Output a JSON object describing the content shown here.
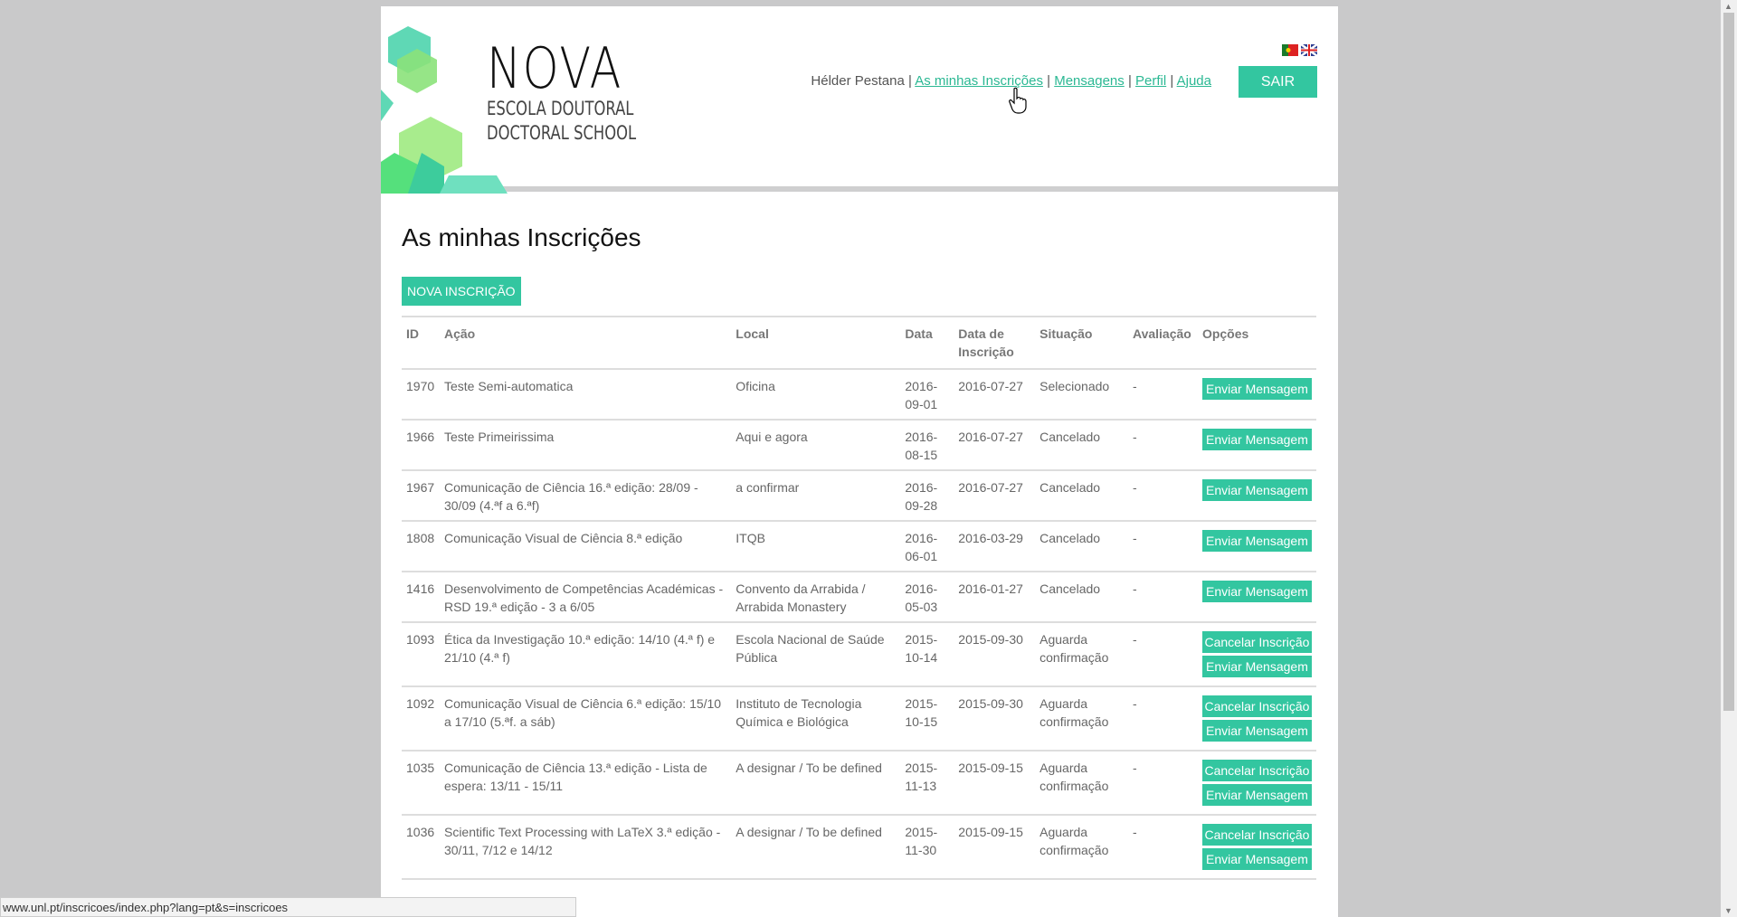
{
  "header": {
    "logo_title": "NOVA",
    "logo_sub1": "ESCOLA DOUTORAL",
    "logo_sub2": "DOCTORAL SCHOOL",
    "user": "Hélder Pestana",
    "nav": [
      "As minhas Inscrições",
      "Mensagens",
      "Perfil",
      "Ajuda"
    ],
    "separator": "|",
    "logout": "SAIR",
    "flags": [
      "pt-flag-icon",
      "uk-flag-icon"
    ]
  },
  "main": {
    "title": "As minhas Inscrições",
    "new_button": "NOVA INSCRIÇÃO",
    "columns": [
      "ID",
      "Ação",
      "Local",
      "Data",
      "Data de Inscrição",
      "Situação",
      "Avaliação",
      "Opções"
    ],
    "rows": [
      {
        "id": "1970",
        "acao": "Teste Semi-automatica",
        "local": "Oficina",
        "data": "2016-09-01",
        "inscricao": "2016-07-27",
        "situacao": "Selecionado",
        "avaliacao": "-",
        "buttons": [
          "Enviar Mensagem"
        ]
      },
      {
        "id": "1966",
        "acao": "Teste Primeirissima",
        "local": "Aqui e agora",
        "data": "2016-08-15",
        "inscricao": "2016-07-27",
        "situacao": "Cancelado",
        "avaliacao": "-",
        "buttons": [
          "Enviar Mensagem"
        ]
      },
      {
        "id": "1967",
        "acao": "Comunicação de Ciência 16.ª edição: 28/09 - 30/09 (4.ªf a 6.ªf)",
        "local": "a confirmar",
        "data": "2016-09-28",
        "inscricao": "2016-07-27",
        "situacao": "Cancelado",
        "avaliacao": "-",
        "buttons": [
          "Enviar Mensagem"
        ]
      },
      {
        "id": "1808",
        "acao": "Comunicação Visual de Ciência 8.ª edição",
        "local": "ITQB",
        "data": "2016-06-01",
        "inscricao": "2016-03-29",
        "situacao": "Cancelado",
        "avaliacao": "-",
        "buttons": [
          "Enviar Mensagem"
        ]
      },
      {
        "id": "1416",
        "acao": "Desenvolvimento de Competências Académicas - RSD 19.ª edição - 3 a 6/05",
        "local": "Convento da Arrabida / Arrabida Monastery",
        "data": "2016-05-03",
        "inscricao": "2016-01-27",
        "situacao": "Cancelado",
        "avaliacao": "-",
        "buttons": [
          "Enviar Mensagem"
        ]
      },
      {
        "id": "1093",
        "acao": "Ética da Investigação 10.ª edição: 14/10 (4.ª f) e 21/10 (4.ª f)",
        "local": "Escola Nacional de Saúde Pública",
        "data": "2015-10-14",
        "inscricao": "2015-09-30",
        "situacao": "Aguarda confirmação",
        "avaliacao": "-",
        "buttons": [
          "Cancelar Inscrição",
          "Enviar Mensagem"
        ]
      },
      {
        "id": "1092",
        "acao": "Comunicação Visual de Ciência 6.ª edição: 15/10 a 17/10 (5.ªf. a sáb)",
        "local": "Instituto de Tecnologia Química e Biológica",
        "data": "2015-10-15",
        "inscricao": "2015-09-30",
        "situacao": "Aguarda confirmação",
        "avaliacao": "-",
        "buttons": [
          "Cancelar Inscrição",
          "Enviar Mensagem"
        ]
      },
      {
        "id": "1035",
        "acao": "Comunicação de Ciência 13.ª edição - Lista de espera: 13/11 - 15/11",
        "local": "A designar / To be defined",
        "data": "2015-11-13",
        "inscricao": "2015-09-15",
        "situacao": "Aguarda confirmação",
        "avaliacao": "-",
        "buttons": [
          "Cancelar Inscrição",
          "Enviar Mensagem"
        ]
      },
      {
        "id": "1036",
        "acao": "Scientific Text Processing with LaTeX 3.ª edição - 30/11, 7/12 e 14/12",
        "local": "A designar / To be defined",
        "data": "2015-11-30",
        "inscricao": "2015-09-15",
        "situacao": "Aguarda confirmação",
        "avaliacao": "-",
        "buttons": [
          "Cancelar Inscrição",
          "Enviar Mensagem"
        ]
      }
    ]
  },
  "statusbar": {
    "url": "www.unl.pt/inscricoes/index.php?lang=pt&s=inscricoes"
  },
  "colors": {
    "accent": "#33c6a0",
    "link": "#2bb893",
    "background": "#c9c9ca"
  }
}
